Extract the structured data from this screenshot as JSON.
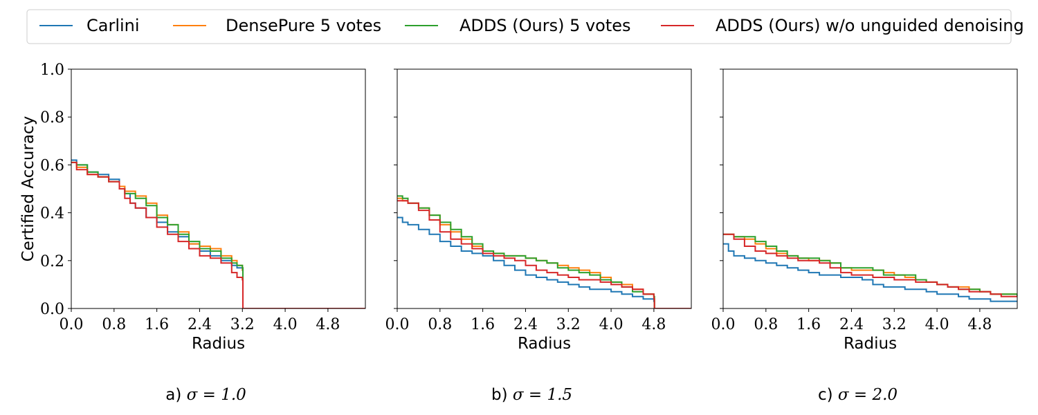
{
  "legend": {
    "placement": "top-center",
    "entries": [
      {
        "label": "Carlini",
        "color": "#1f77b4"
      },
      {
        "label": "DensePure 5 votes",
        "color": "#ff7f0e"
      },
      {
        "label": "ADDS (Ours) 5 votes",
        "color": "#2ca02c"
      },
      {
        "label": "ADDS (Ours) w/o unguided denoising",
        "color": "#d62728"
      }
    ]
  },
  "chart_data": [
    {
      "type": "line",
      "caption_prefix": "a)",
      "caption_sigma": "σ = 1.0",
      "xlabel": "Radius",
      "ylabel": "Certified Accuracy",
      "xlim": [
        0,
        5.5
      ],
      "ylim": [
        0,
        1.0
      ],
      "xticks": [
        "0.0",
        "0.8",
        "1.6",
        "2.4",
        "3.2",
        "4.0",
        "4.8"
      ],
      "yticks": [
        "0.0",
        "0.2",
        "0.4",
        "0.6",
        "0.8",
        "1.0"
      ],
      "series": [
        {
          "name": "Carlini",
          "x": [
            0,
            0.1,
            0.3,
            0.5,
            0.7,
            0.9,
            1.0,
            1.1,
            1.2,
            1.4,
            1.6,
            1.8,
            2.0,
            2.2,
            2.4,
            2.6,
            2.8,
            3.0,
            3.1,
            3.2,
            3.21,
            5.5
          ],
          "y": [
            0.62,
            0.6,
            0.57,
            0.56,
            0.54,
            0.51,
            0.48,
            0.44,
            0.42,
            0.38,
            0.36,
            0.32,
            0.3,
            0.27,
            0.24,
            0.22,
            0.2,
            0.18,
            0.17,
            0.16,
            0.0,
            0.0
          ]
        },
        {
          "name": "DensePure 5 votes",
          "x": [
            0,
            0.1,
            0.3,
            0.5,
            0.7,
            0.9,
            1.0,
            1.2,
            1.4,
            1.6,
            1.8,
            2.0,
            2.2,
            2.4,
            2.6,
            2.8,
            3.0,
            3.1,
            3.2,
            3.21,
            5.5
          ],
          "y": [
            0.61,
            0.59,
            0.56,
            0.55,
            0.53,
            0.51,
            0.49,
            0.47,
            0.44,
            0.39,
            0.35,
            0.32,
            0.27,
            0.26,
            0.25,
            0.22,
            0.2,
            0.18,
            0.16,
            0.0,
            0.0
          ]
        },
        {
          "name": "ADDS (Ours) 5 votes",
          "x": [
            0,
            0.1,
            0.3,
            0.5,
            0.7,
            0.9,
            1.0,
            1.2,
            1.4,
            1.6,
            1.8,
            2.0,
            2.2,
            2.4,
            2.6,
            2.8,
            3.0,
            3.1,
            3.2,
            3.21,
            5.5
          ],
          "y": [
            0.61,
            0.6,
            0.57,
            0.55,
            0.53,
            0.5,
            0.48,
            0.46,
            0.43,
            0.38,
            0.35,
            0.31,
            0.28,
            0.25,
            0.24,
            0.21,
            0.19,
            0.18,
            0.17,
            0.0,
            0.0
          ]
        },
        {
          "name": "ADDS (Ours) w/o unguided denoising",
          "x": [
            0,
            0.1,
            0.3,
            0.5,
            0.7,
            0.9,
            1.0,
            1.1,
            1.2,
            1.4,
            1.6,
            1.8,
            2.0,
            2.2,
            2.4,
            2.6,
            2.8,
            3.0,
            3.1,
            3.2,
            3.21,
            5.5
          ],
          "y": [
            0.61,
            0.58,
            0.56,
            0.55,
            0.53,
            0.5,
            0.46,
            0.44,
            0.42,
            0.38,
            0.34,
            0.31,
            0.28,
            0.25,
            0.22,
            0.21,
            0.19,
            0.15,
            0.13,
            0.12,
            0.0,
            0.0
          ]
        }
      ]
    },
    {
      "type": "line",
      "caption_prefix": "b)",
      "caption_sigma": "σ = 1.5",
      "xlabel": "Radius",
      "ylabel": "",
      "xlim": [
        0,
        5.5
      ],
      "ylim": [
        0,
        1.0
      ],
      "xticks": [
        "0.0",
        "0.8",
        "1.6",
        "2.4",
        "3.2",
        "4.0",
        "4.8"
      ],
      "yticks": [
        "",
        "",
        "",
        "",
        "",
        ""
      ],
      "series": [
        {
          "name": "Carlini",
          "x": [
            0,
            0.1,
            0.2,
            0.4,
            0.6,
            0.8,
            1.0,
            1.2,
            1.4,
            1.6,
            1.8,
            2.0,
            2.2,
            2.4,
            2.6,
            2.8,
            3.0,
            3.2,
            3.4,
            3.6,
            3.8,
            4.0,
            4.2,
            4.4,
            4.6,
            4.8,
            4.81,
            5.5
          ],
          "y": [
            0.38,
            0.36,
            0.35,
            0.33,
            0.31,
            0.28,
            0.26,
            0.24,
            0.23,
            0.22,
            0.2,
            0.18,
            0.16,
            0.14,
            0.13,
            0.12,
            0.11,
            0.1,
            0.09,
            0.08,
            0.08,
            0.07,
            0.06,
            0.05,
            0.04,
            0.03,
            0.0,
            0.0
          ]
        },
        {
          "name": "DensePure 5 votes",
          "x": [
            0,
            0.1,
            0.2,
            0.4,
            0.6,
            0.8,
            1.0,
            1.2,
            1.4,
            1.6,
            1.8,
            2.0,
            2.2,
            2.4,
            2.6,
            2.8,
            3.0,
            3.2,
            3.4,
            3.6,
            3.8,
            4.0,
            4.2,
            4.4,
            4.6,
            4.8,
            4.81,
            5.5
          ],
          "y": [
            0.46,
            0.45,
            0.44,
            0.42,
            0.39,
            0.35,
            0.32,
            0.29,
            0.26,
            0.24,
            0.23,
            0.22,
            0.22,
            0.21,
            0.2,
            0.19,
            0.18,
            0.17,
            0.16,
            0.15,
            0.13,
            0.11,
            0.1,
            0.08,
            0.06,
            0.05,
            0.0,
            0.0
          ]
        },
        {
          "name": "ADDS (Ours) 5 votes",
          "x": [
            0,
            0.1,
            0.2,
            0.4,
            0.6,
            0.8,
            1.0,
            1.2,
            1.4,
            1.6,
            1.8,
            2.0,
            2.2,
            2.4,
            2.6,
            2.8,
            3.0,
            3.2,
            3.4,
            3.6,
            3.8,
            4.0,
            4.2,
            4.4,
            4.6,
            4.8,
            4.81,
            5.5
          ],
          "y": [
            0.47,
            0.46,
            0.44,
            0.42,
            0.39,
            0.36,
            0.33,
            0.3,
            0.27,
            0.24,
            0.23,
            0.22,
            0.22,
            0.21,
            0.2,
            0.19,
            0.17,
            0.16,
            0.15,
            0.14,
            0.12,
            0.11,
            0.09,
            0.07,
            0.06,
            0.05,
            0.0,
            0.0
          ]
        },
        {
          "name": "ADDS (Ours) w/o unguided denoising",
          "x": [
            0,
            0.1,
            0.2,
            0.4,
            0.6,
            0.8,
            1.0,
            1.2,
            1.4,
            1.6,
            1.8,
            2.0,
            2.2,
            2.4,
            2.6,
            2.8,
            3.0,
            3.2,
            3.4,
            3.6,
            3.8,
            4.0,
            4.2,
            4.4,
            4.6,
            4.8,
            4.81,
            5.5
          ],
          "y": [
            0.45,
            0.45,
            0.44,
            0.41,
            0.37,
            0.32,
            0.29,
            0.27,
            0.25,
            0.23,
            0.22,
            0.21,
            0.2,
            0.18,
            0.16,
            0.15,
            0.14,
            0.13,
            0.12,
            0.12,
            0.11,
            0.1,
            0.09,
            0.08,
            0.06,
            0.04,
            0.0,
            0.0
          ]
        }
      ]
    },
    {
      "type": "line",
      "caption_prefix": "c)",
      "caption_sigma": "σ = 2.0",
      "xlabel": "Radius",
      "ylabel": "",
      "xlim": [
        0,
        5.5
      ],
      "ylim": [
        0,
        1.0
      ],
      "xticks": [
        "0.0",
        "0.8",
        "1.6",
        "2.4",
        "3.2",
        "4.0",
        "4.8"
      ],
      "yticks": [
        "",
        "",
        "",
        "",
        "",
        ""
      ],
      "series": [
        {
          "name": "Carlini",
          "x": [
            0,
            0.1,
            0.2,
            0.4,
            0.6,
            0.8,
            1.0,
            1.2,
            1.4,
            1.6,
            1.8,
            2.0,
            2.2,
            2.4,
            2.6,
            2.8,
            3.0,
            3.2,
            3.4,
            3.6,
            3.8,
            4.0,
            4.2,
            4.4,
            4.6,
            4.8,
            5.0,
            5.2,
            5.5
          ],
          "y": [
            0.27,
            0.24,
            0.22,
            0.21,
            0.2,
            0.19,
            0.18,
            0.17,
            0.16,
            0.15,
            0.14,
            0.14,
            0.13,
            0.13,
            0.12,
            0.1,
            0.09,
            0.09,
            0.08,
            0.08,
            0.07,
            0.06,
            0.06,
            0.05,
            0.04,
            0.04,
            0.03,
            0.03,
            0.03
          ]
        },
        {
          "name": "DensePure 5 votes",
          "x": [
            0,
            0.2,
            0.4,
            0.6,
            0.8,
            1.0,
            1.2,
            1.4,
            1.6,
            1.8,
            2.0,
            2.2,
            2.4,
            2.6,
            2.8,
            3.0,
            3.2,
            3.4,
            3.6,
            3.8,
            4.0,
            4.2,
            4.4,
            4.6,
            4.8,
            5.0,
            5.2,
            5.5
          ],
          "y": [
            0.31,
            0.3,
            0.29,
            0.27,
            0.25,
            0.23,
            0.22,
            0.21,
            0.2,
            0.2,
            0.19,
            0.17,
            0.16,
            0.16,
            0.16,
            0.15,
            0.14,
            0.13,
            0.12,
            0.11,
            0.1,
            0.09,
            0.09,
            0.08,
            0.07,
            0.06,
            0.06,
            0.05
          ]
        },
        {
          "name": "ADDS (Ours) 5 votes",
          "x": [
            0,
            0.2,
            0.4,
            0.6,
            0.8,
            1.0,
            1.2,
            1.4,
            1.6,
            1.8,
            2.0,
            2.2,
            2.4,
            2.6,
            2.8,
            3.0,
            3.2,
            3.4,
            3.6,
            3.8,
            4.0,
            4.2,
            4.4,
            4.6,
            4.8,
            5.0,
            5.2,
            5.5
          ],
          "y": [
            0.31,
            0.3,
            0.3,
            0.28,
            0.26,
            0.24,
            0.22,
            0.21,
            0.21,
            0.2,
            0.19,
            0.17,
            0.17,
            0.17,
            0.16,
            0.14,
            0.14,
            0.14,
            0.12,
            0.11,
            0.1,
            0.09,
            0.08,
            0.08,
            0.07,
            0.06,
            0.06,
            0.05
          ]
        },
        {
          "name": "ADDS (Ours) w/o unguided denoising",
          "x": [
            0,
            0.2,
            0.4,
            0.6,
            0.8,
            1.0,
            1.2,
            1.4,
            1.6,
            1.8,
            2.0,
            2.2,
            2.4,
            2.6,
            2.8,
            3.0,
            3.2,
            3.4,
            3.6,
            3.8,
            4.0,
            4.2,
            4.4,
            4.6,
            4.8,
            5.0,
            5.2,
            5.5
          ],
          "y": [
            0.31,
            0.29,
            0.26,
            0.24,
            0.23,
            0.22,
            0.21,
            0.2,
            0.2,
            0.19,
            0.17,
            0.15,
            0.14,
            0.14,
            0.13,
            0.13,
            0.12,
            0.12,
            0.11,
            0.11,
            0.1,
            0.09,
            0.08,
            0.07,
            0.07,
            0.06,
            0.05,
            0.05
          ]
        }
      ]
    }
  ]
}
